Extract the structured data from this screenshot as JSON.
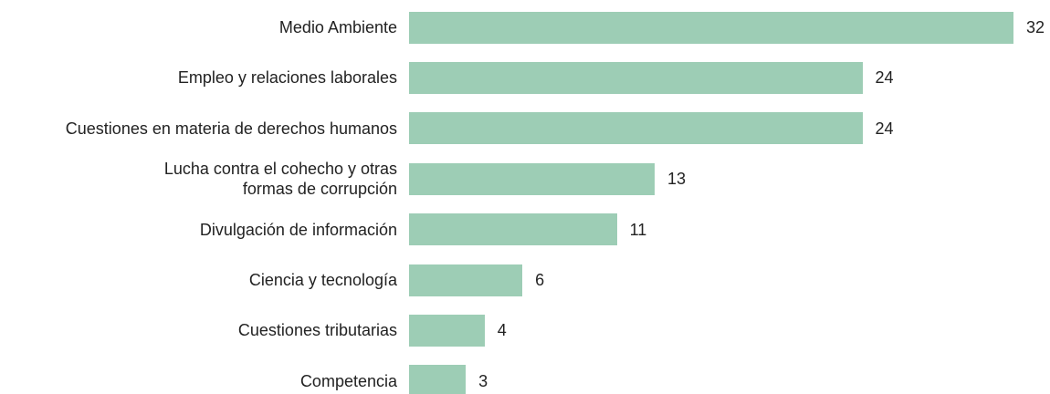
{
  "chart_data": {
    "type": "bar",
    "orientation": "horizontal",
    "categories": [
      "Medio Ambiente",
      "Empleo y relaciones laborales",
      "Cuestiones en materia de derechos humanos",
      "Lucha contra el cohecho y otras\nformas de corrupción",
      "Divulgación de información",
      "Ciencia y tecnología",
      "Cuestiones tributarias",
      "Competencia"
    ],
    "values": [
      32,
      24,
      24,
      13,
      11,
      6,
      4,
      3
    ],
    "color": "#9dcdb5"
  }
}
